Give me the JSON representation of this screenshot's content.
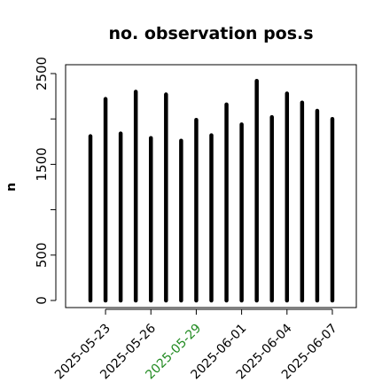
{
  "chart_data": {
    "type": "bar",
    "title": "no. observation pos.s",
    "xlabel": "",
    "ylabel": "n",
    "ylim": [
      0,
      2500
    ],
    "yticks": [
      0,
      500,
      1500,
      2500
    ],
    "grid": false,
    "x": [
      "2025-05-22",
      "2025-05-23",
      "2025-05-24",
      "2025-05-25",
      "2025-05-26",
      "2025-05-27",
      "2025-05-28",
      "2025-05-29",
      "2025-05-30",
      "2025-05-31",
      "2025-06-01",
      "2025-06-02",
      "2025-06-03",
      "2025-06-04",
      "2025-06-05",
      "2025-06-06",
      "2025-06-07"
    ],
    "values": [
      1810,
      2220,
      1840,
      2300,
      1790,
      2270,
      1760,
      1990,
      1820,
      2160,
      1940,
      2420,
      2020,
      2280,
      2180,
      2090,
      2000
    ],
    "xtick_labels": [
      {
        "label": "2025-05-23",
        "color": "#000000"
      },
      {
        "label": "2025-05-26",
        "color": "#000000"
      },
      {
        "label": "2025-05-29",
        "color": "#228b22"
      },
      {
        "label": "2025-06-01",
        "color": "#000000"
      },
      {
        "label": "2025-06-04",
        "color": "#000000"
      },
      {
        "label": "2025-06-07",
        "color": "#000000"
      }
    ],
    "bar_color": "#000000",
    "axis_color": "#000000"
  }
}
